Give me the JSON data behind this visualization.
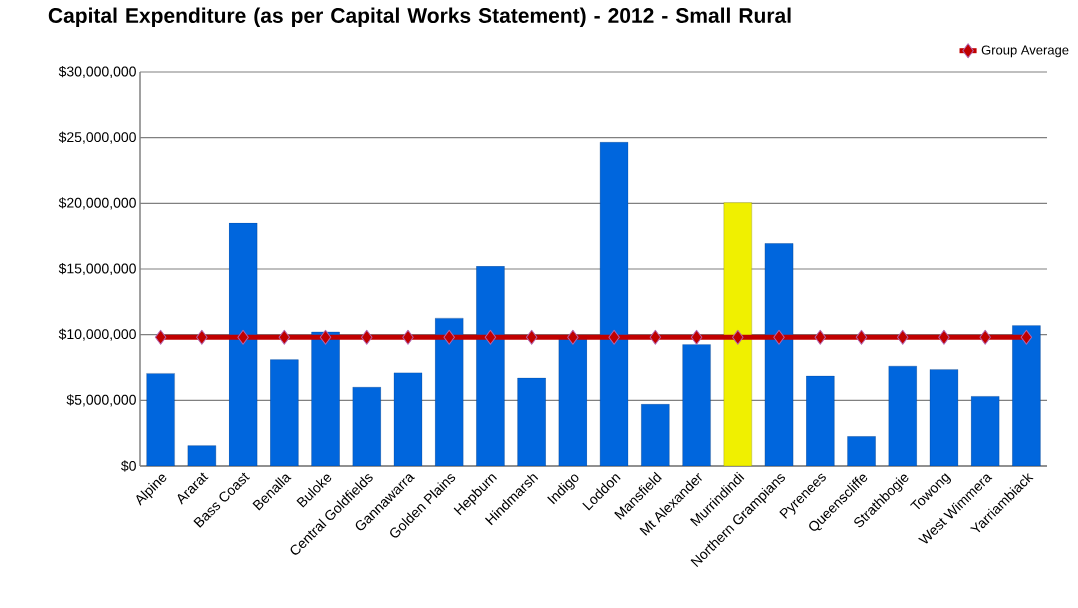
{
  "chart_data": {
    "type": "bar",
    "title": "Capital Expenditure (as per Capital Works Statement) - 2012 - Small Rural",
    "categories": [
      "Alpine",
      "Ararat",
      "Bass Coast",
      "Benalla",
      "Buloke",
      "Central Goldfields",
      "Gannawarra",
      "Golden Plains",
      "Hepburn",
      "Hindmarsh",
      "Indigo",
      "Loddon",
      "Mansfield",
      "Mt Alexander",
      "Murrindindi",
      "Northern Grampians",
      "Pyrenees",
      "Queenscliffe",
      "Strathbogie",
      "Towong",
      "West Wimmera",
      "Yarriambiack"
    ],
    "series": [
      {
        "colors": [
          "#0066dd",
          "#0066dd",
          "#0066dd",
          "#0066dd",
          "#0066dd",
          "#0066dd",
          "#0066dd",
          "#0066dd",
          "#0066dd",
          "#0066dd",
          "#0066dd",
          "#0066dd",
          "#0066dd",
          "#0066dd",
          "#f0f000",
          "#0066dd",
          "#0066dd",
          "#0066dd",
          "#0066dd",
          "#0066dd",
          "#0066dd",
          "#0066dd"
        ],
        "values": [
          7050000,
          1550000,
          18500000,
          8100000,
          10200000,
          6000000,
          7100000,
          11250000,
          15200000,
          6700000,
          9700000,
          24650000,
          4700000,
          9250000,
          20050000,
          16950000,
          6850000,
          2250000,
          7600000,
          7350000,
          5300000,
          10700000
        ]
      },
      {
        "type": "line",
        "name": "Group Average",
        "color": "#c00000",
        "marker": "diamond",
        "values": [
          9800000,
          9800000,
          9800000,
          9800000,
          9800000,
          9800000,
          9800000,
          9800000,
          9800000,
          9800000,
          9800000,
          9800000,
          9800000,
          9800000,
          9800000,
          9800000,
          9800000,
          9800000,
          9800000,
          9800000,
          9800000,
          9800000
        ]
      }
    ],
    "ylim": [
      0,
      30000000
    ],
    "yticks": [
      {
        "value": 0,
        "label": "$0"
      },
      {
        "value": 5000000,
        "label": "$5,000,000"
      },
      {
        "value": 10000000,
        "label": "$10,000,000"
      },
      {
        "value": 15000000,
        "label": "$15,000,000"
      },
      {
        "value": 20000000,
        "label": "$20,000,000"
      },
      {
        "value": 25000000,
        "label": "$25,000,000"
      },
      {
        "value": 30000000,
        "label": "$30,000,000"
      }
    ],
    "grid": "y",
    "legend": "top right"
  }
}
